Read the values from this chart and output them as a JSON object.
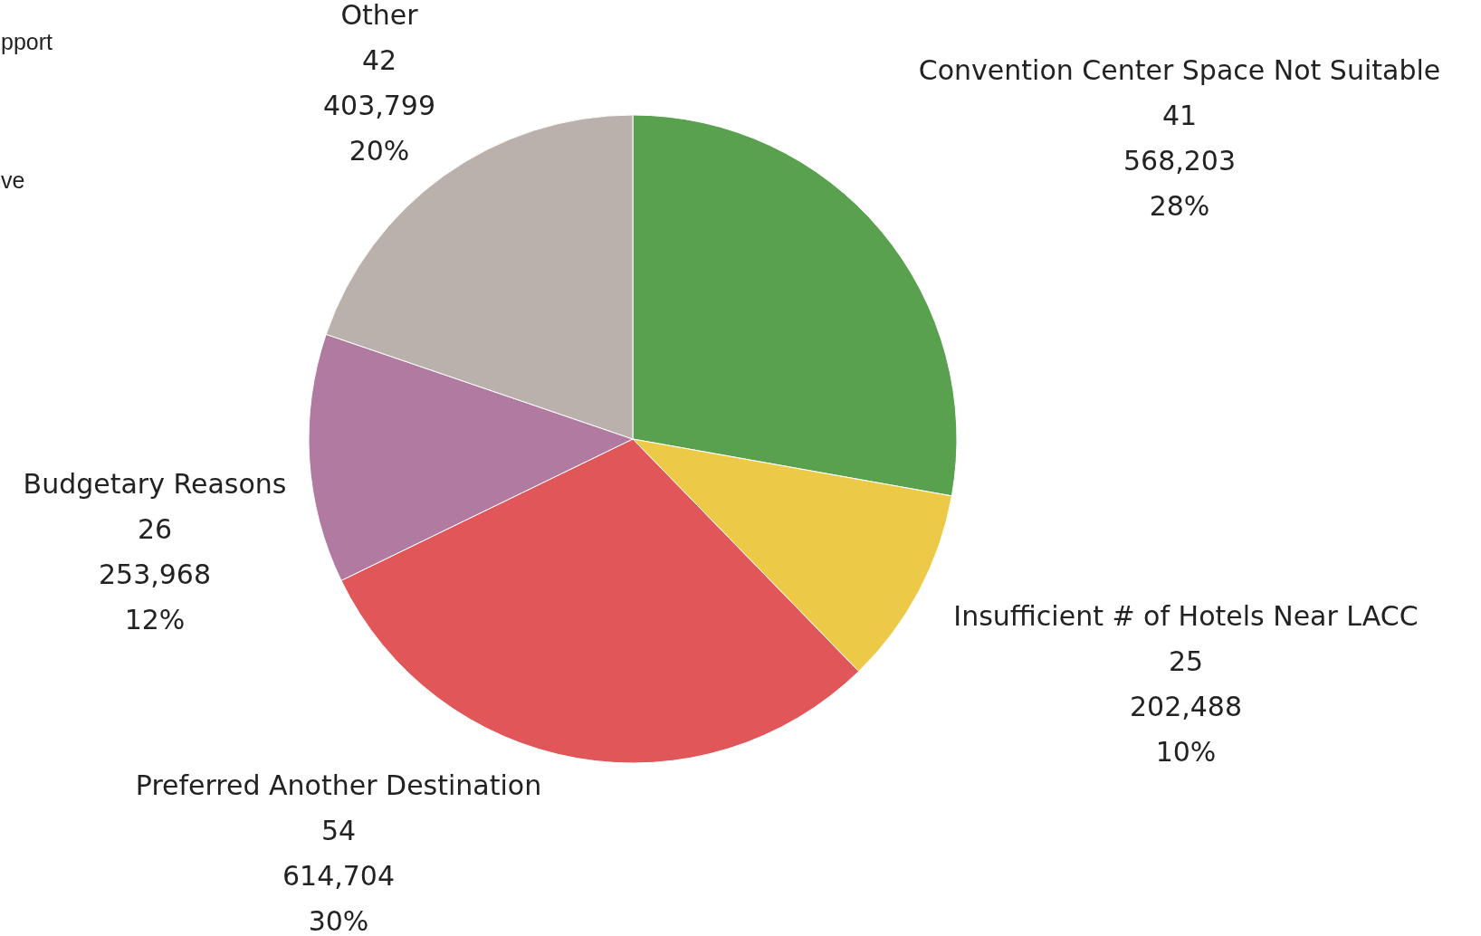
{
  "chart_data": {
    "type": "pie",
    "categories": [
      "Convention Center Space Not Suitable",
      "Insufficient # of Hotels Near LACC",
      "Preferred Another Destination",
      "Budgetary Reasons",
      "Other"
    ],
    "values": [
      568203,
      202488,
      614704,
      253968,
      403799
    ],
    "colors": [
      "#59a14f",
      "#edc948",
      "#e15759",
      "#b07aa1",
      "#bab0ac"
    ],
    "value_labels": [
      "41\n568,203\n28%",
      "25\n202,488\n10%",
      "54\n614,704\n30%",
      "26\n253,968\n12%",
      "42\n403,799\n20%"
    ],
    "annotations": [
      "pport",
      "ve"
    ]
  }
}
